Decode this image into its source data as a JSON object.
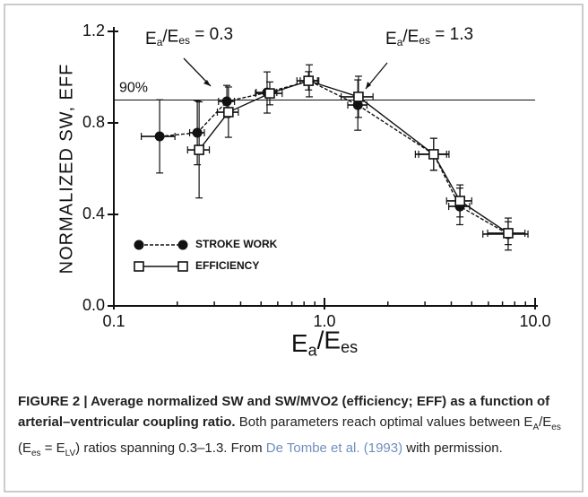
{
  "chart_data": {
    "type": "line",
    "ylabel": "NORMALIZED  SW, EFF",
    "xlabel": [
      {
        "text": "E"
      },
      {
        "text": "a",
        "style": "sub"
      },
      {
        "text": "/E"
      },
      {
        "text": "es",
        "style": "sub"
      }
    ],
    "xscale": "log",
    "xlim": [
      0.1,
      10
    ],
    "xticks": [
      {
        "value": 0.1,
        "label": "0.1"
      },
      {
        "value": 1,
        "label": "1.0"
      },
      {
        "value": 10,
        "label": "10.0"
      }
    ],
    "xminorticks": [
      0.2,
      0.3,
      0.4,
      0.5,
      0.6,
      0.7,
      0.8,
      0.9,
      2,
      3,
      4,
      5,
      6,
      7,
      8,
      9
    ],
    "ylim": [
      0,
      1.2
    ],
    "yticks": [
      {
        "value": 0,
        "label": "0.0"
      },
      0.4,
      0.8,
      1.2
    ],
    "reference_line": {
      "value": 0.9,
      "label": "90%"
    },
    "annotations": [
      [
        {
          "text": "E"
        },
        {
          "text": "a",
          "style": "sub"
        },
        {
          "text": "/E"
        },
        {
          "text": "es",
          "style": "sub"
        },
        {
          "text": " = 0.3"
        }
      ],
      [
        {
          "text": "E"
        },
        {
          "text": "a",
          "style": "sub"
        },
        {
          "text": "/E"
        },
        {
          "text": "es",
          "style": "sub"
        },
        {
          "text": " = 1.3"
        }
      ]
    ],
    "series": [
      {
        "name": "STROKE WORK",
        "color": "#111111",
        "marker": "circle",
        "linestyle": "dashed",
        "x": [
          0.165,
          0.249,
          0.344,
          0.534,
          0.847,
          1.44,
          3.3,
          4.39,
          7.45
        ],
        "xerr": [
          0.03,
          0.02,
          0.03,
          0.06,
          0.08,
          0.15,
          0.6,
          0.5,
          1.8
        ],
        "values": [
          0.741,
          0.757,
          0.894,
          0.933,
          0.984,
          0.878,
          0.663,
          0.435,
          0.314
        ],
        "yerr": [
          0.16,
          0.14,
          0.07,
          0.09,
          0.07,
          0.11,
          0.07,
          0.08,
          0.07
        ]
      },
      {
        "name": "EFFICIENCY",
        "color": "#111111",
        "marker": "square",
        "linestyle": "solid",
        "x": [
          0.254,
          0.35,
          0.55,
          0.84,
          1.45,
          3.3,
          4.4,
          7.45
        ],
        "xerr": [
          0.03,
          0.04,
          0.08,
          0.1,
          0.25,
          0.5,
          0.6,
          1.5
        ],
        "values": [
          0.682,
          0.847,
          0.929,
          0.984,
          0.914,
          0.663,
          0.459,
          0.318
        ],
        "yerr": [
          0.21,
          0.11,
          0.05,
          0.04,
          0.09,
          0.07,
          0.07,
          0.05
        ]
      }
    ]
  },
  "caption": {
    "label": "FIGURE 2 | ",
    "title": "Average normalized SW and SW/MVO2 (efficiency; EFF) as a function of arterial–ventricular coupling ratio.",
    "body": [
      {
        "text": " Both parameters reach optimal values between E"
      },
      {
        "text": "A",
        "style": "sub"
      },
      {
        "text": "/E"
      },
      {
        "text": "es",
        "style": "sub"
      },
      {
        "text": " (E"
      },
      {
        "text": "es",
        "style": "sub"
      },
      {
        "text": " = E"
      },
      {
        "text": "LV",
        "style": "sub"
      },
      {
        "text": ") ratios spanning 0.3–1.3. From "
      },
      {
        "text": "De Tombe et al. (1993)",
        "style": "link"
      },
      {
        "text": " with permission."
      }
    ]
  }
}
